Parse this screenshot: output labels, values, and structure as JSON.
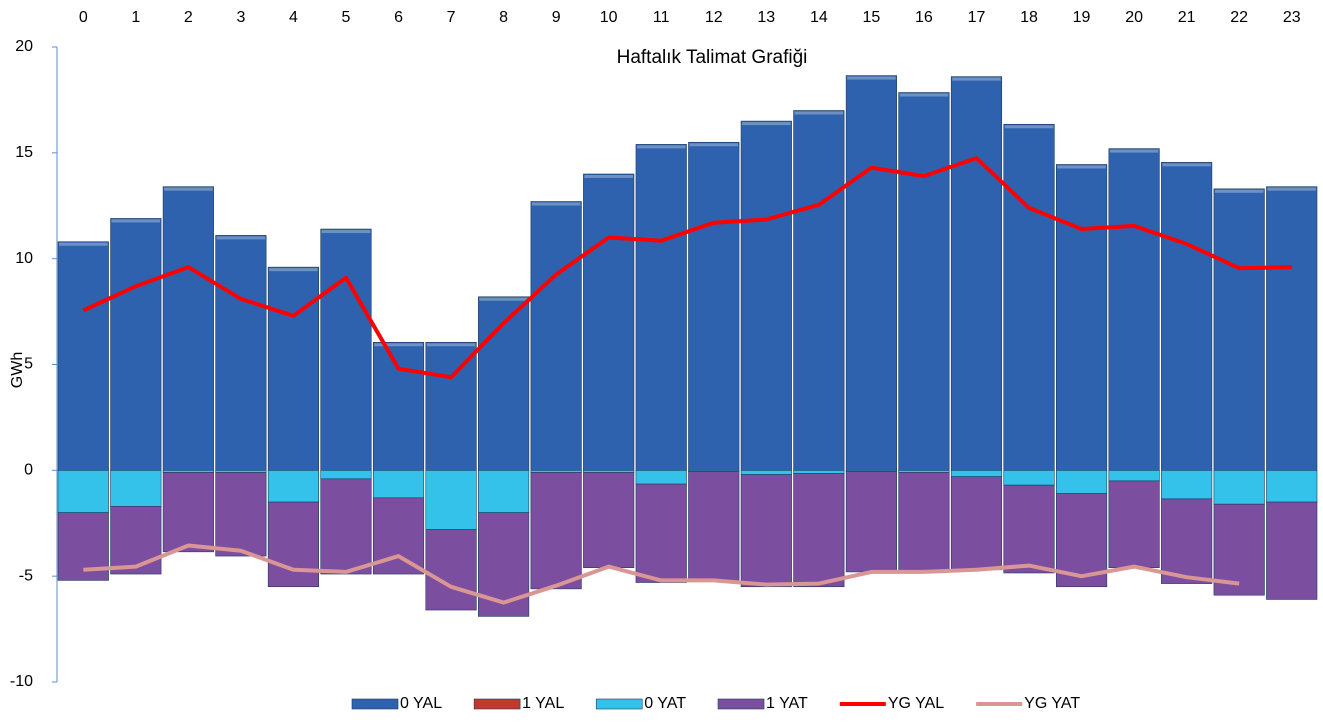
{
  "chart_data": {
    "type": "bar",
    "title": "Haftalık Talimat Grafiği",
    "y_label": "GWh",
    "categories": [
      "0",
      "1",
      "2",
      "3",
      "4",
      "5",
      "6",
      "7",
      "8",
      "9",
      "10",
      "11",
      "12",
      "13",
      "14",
      "15",
      "16",
      "17",
      "18",
      "19",
      "20",
      "21",
      "22",
      "23"
    ],
    "series": [
      {
        "name": "0 YAL",
        "type": "bar",
        "color": "#2f62ae",
        "values": [
          10.8,
          11.9,
          13.4,
          11.1,
          9.6,
          11.4,
          6.05,
          6.05,
          8.2,
          12.7,
          14.0,
          15.4,
          15.5,
          16.5,
          17.0,
          18.65,
          17.85,
          18.6,
          16.35,
          14.45,
          15.2,
          14.55,
          13.3,
          13.4
        ]
      },
      {
        "name": "1 YAL",
        "type": "bar",
        "color": "#c0392b",
        "values": [
          0,
          0,
          0,
          0,
          0,
          0,
          0,
          0,
          0,
          0,
          0,
          0,
          0,
          0,
          0,
          0,
          0,
          0,
          0,
          0,
          0,
          0,
          0,
          0
        ]
      },
      {
        "name": "0 YAT",
        "type": "bar",
        "color": "#35c2ea",
        "values": [
          -2.0,
          -1.7,
          -0.1,
          -0.1,
          -1.5,
          -0.4,
          -1.3,
          -2.8,
          -2.0,
          -0.1,
          -0.1,
          -0.65,
          -0.05,
          -0.2,
          -0.15,
          -0.05,
          -0.1,
          -0.3,
          -0.7,
          -1.1,
          -0.5,
          -1.35,
          -1.6,
          -1.5
        ]
      },
      {
        "name": "1 YAT",
        "type": "bar",
        "color": "#7b4ea0",
        "values": [
          -3.2,
          -3.2,
          -3.75,
          -3.95,
          -4.0,
          -4.5,
          -3.6,
          -3.8,
          -4.9,
          -5.5,
          -4.5,
          -4.65,
          -5.2,
          -5.3,
          -5.35,
          -4.75,
          -4.7,
          -4.4,
          -4.15,
          -4.4,
          -4.1,
          -4.0,
          -4.3,
          -4.6
        ]
      },
      {
        "name": "YG YAL",
        "type": "line",
        "color": "#ff0000",
        "values": [
          7.55,
          8.7,
          9.6,
          8.1,
          7.3,
          9.1,
          4.8,
          4.4,
          6.95,
          9.25,
          11.0,
          10.85,
          11.7,
          11.85,
          12.55,
          14.3,
          13.9,
          14.75,
          12.4,
          11.4,
          11.55,
          10.7,
          9.55,
          9.6
        ]
      },
      {
        "name": "YG YAT",
        "type": "line",
        "color": "#d99694",
        "values": [
          -4.7,
          -4.55,
          -3.55,
          -3.8,
          -4.7,
          -4.8,
          -4.05,
          -5.5,
          -6.25,
          -5.45,
          -4.55,
          -5.2,
          -5.2,
          -5.4,
          -5.35,
          -4.8,
          -4.8,
          -4.7,
          -4.5,
          -5.0,
          -4.55,
          -5.05,
          -5.35,
          null
        ]
      }
    ],
    "ylim": [
      -10,
      20
    ],
    "yticks": [
      -10,
      -5,
      0,
      5,
      10,
      15,
      20
    ],
    "legend": "bottom"
  }
}
